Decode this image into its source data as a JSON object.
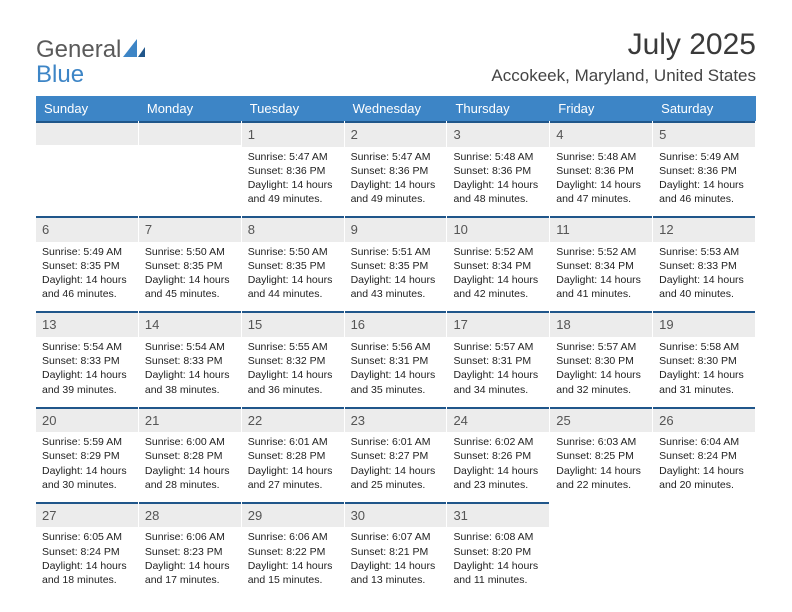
{
  "brand": {
    "part1": "General",
    "part2": "Blue"
  },
  "title": "July 2025",
  "location": "Accokeek, Maryland, United States",
  "colors": {
    "header_bg": "#3d85c6",
    "header_text": "#ffffff",
    "rule": "#20568a",
    "daynum_bg": "#ececec",
    "text": "#222222"
  },
  "weekdays": [
    "Sunday",
    "Monday",
    "Tuesday",
    "Wednesday",
    "Thursday",
    "Friday",
    "Saturday"
  ],
  "weeks": [
    [
      null,
      null,
      {
        "n": "1",
        "sunrise": "Sunrise: 5:47 AM",
        "sunset": "Sunset: 8:36 PM",
        "daylight": "Daylight: 14 hours and 49 minutes."
      },
      {
        "n": "2",
        "sunrise": "Sunrise: 5:47 AM",
        "sunset": "Sunset: 8:36 PM",
        "daylight": "Daylight: 14 hours and 49 minutes."
      },
      {
        "n": "3",
        "sunrise": "Sunrise: 5:48 AM",
        "sunset": "Sunset: 8:36 PM",
        "daylight": "Daylight: 14 hours and 48 minutes."
      },
      {
        "n": "4",
        "sunrise": "Sunrise: 5:48 AM",
        "sunset": "Sunset: 8:36 PM",
        "daylight": "Daylight: 14 hours and 47 minutes."
      },
      {
        "n": "5",
        "sunrise": "Sunrise: 5:49 AM",
        "sunset": "Sunset: 8:36 PM",
        "daylight": "Daylight: 14 hours and 46 minutes."
      }
    ],
    [
      {
        "n": "6",
        "sunrise": "Sunrise: 5:49 AM",
        "sunset": "Sunset: 8:35 PM",
        "daylight": "Daylight: 14 hours and 46 minutes."
      },
      {
        "n": "7",
        "sunrise": "Sunrise: 5:50 AM",
        "sunset": "Sunset: 8:35 PM",
        "daylight": "Daylight: 14 hours and 45 minutes."
      },
      {
        "n": "8",
        "sunrise": "Sunrise: 5:50 AM",
        "sunset": "Sunset: 8:35 PM",
        "daylight": "Daylight: 14 hours and 44 minutes."
      },
      {
        "n": "9",
        "sunrise": "Sunrise: 5:51 AM",
        "sunset": "Sunset: 8:35 PM",
        "daylight": "Daylight: 14 hours and 43 minutes."
      },
      {
        "n": "10",
        "sunrise": "Sunrise: 5:52 AM",
        "sunset": "Sunset: 8:34 PM",
        "daylight": "Daylight: 14 hours and 42 minutes."
      },
      {
        "n": "11",
        "sunrise": "Sunrise: 5:52 AM",
        "sunset": "Sunset: 8:34 PM",
        "daylight": "Daylight: 14 hours and 41 minutes."
      },
      {
        "n": "12",
        "sunrise": "Sunrise: 5:53 AM",
        "sunset": "Sunset: 8:33 PM",
        "daylight": "Daylight: 14 hours and 40 minutes."
      }
    ],
    [
      {
        "n": "13",
        "sunrise": "Sunrise: 5:54 AM",
        "sunset": "Sunset: 8:33 PM",
        "daylight": "Daylight: 14 hours and 39 minutes."
      },
      {
        "n": "14",
        "sunrise": "Sunrise: 5:54 AM",
        "sunset": "Sunset: 8:33 PM",
        "daylight": "Daylight: 14 hours and 38 minutes."
      },
      {
        "n": "15",
        "sunrise": "Sunrise: 5:55 AM",
        "sunset": "Sunset: 8:32 PM",
        "daylight": "Daylight: 14 hours and 36 minutes."
      },
      {
        "n": "16",
        "sunrise": "Sunrise: 5:56 AM",
        "sunset": "Sunset: 8:31 PM",
        "daylight": "Daylight: 14 hours and 35 minutes."
      },
      {
        "n": "17",
        "sunrise": "Sunrise: 5:57 AM",
        "sunset": "Sunset: 8:31 PM",
        "daylight": "Daylight: 14 hours and 34 minutes."
      },
      {
        "n": "18",
        "sunrise": "Sunrise: 5:57 AM",
        "sunset": "Sunset: 8:30 PM",
        "daylight": "Daylight: 14 hours and 32 minutes."
      },
      {
        "n": "19",
        "sunrise": "Sunrise: 5:58 AM",
        "sunset": "Sunset: 8:30 PM",
        "daylight": "Daylight: 14 hours and 31 minutes."
      }
    ],
    [
      {
        "n": "20",
        "sunrise": "Sunrise: 5:59 AM",
        "sunset": "Sunset: 8:29 PM",
        "daylight": "Daylight: 14 hours and 30 minutes."
      },
      {
        "n": "21",
        "sunrise": "Sunrise: 6:00 AM",
        "sunset": "Sunset: 8:28 PM",
        "daylight": "Daylight: 14 hours and 28 minutes."
      },
      {
        "n": "22",
        "sunrise": "Sunrise: 6:01 AM",
        "sunset": "Sunset: 8:28 PM",
        "daylight": "Daylight: 14 hours and 27 minutes."
      },
      {
        "n": "23",
        "sunrise": "Sunrise: 6:01 AM",
        "sunset": "Sunset: 8:27 PM",
        "daylight": "Daylight: 14 hours and 25 minutes."
      },
      {
        "n": "24",
        "sunrise": "Sunrise: 6:02 AM",
        "sunset": "Sunset: 8:26 PM",
        "daylight": "Daylight: 14 hours and 23 minutes."
      },
      {
        "n": "25",
        "sunrise": "Sunrise: 6:03 AM",
        "sunset": "Sunset: 8:25 PM",
        "daylight": "Daylight: 14 hours and 22 minutes."
      },
      {
        "n": "26",
        "sunrise": "Sunrise: 6:04 AM",
        "sunset": "Sunset: 8:24 PM",
        "daylight": "Daylight: 14 hours and 20 minutes."
      }
    ],
    [
      {
        "n": "27",
        "sunrise": "Sunrise: 6:05 AM",
        "sunset": "Sunset: 8:24 PM",
        "daylight": "Daylight: 14 hours and 18 minutes."
      },
      {
        "n": "28",
        "sunrise": "Sunrise: 6:06 AM",
        "sunset": "Sunset: 8:23 PM",
        "daylight": "Daylight: 14 hours and 17 minutes."
      },
      {
        "n": "29",
        "sunrise": "Sunrise: 6:06 AM",
        "sunset": "Sunset: 8:22 PM",
        "daylight": "Daylight: 14 hours and 15 minutes."
      },
      {
        "n": "30",
        "sunrise": "Sunrise: 6:07 AM",
        "sunset": "Sunset: 8:21 PM",
        "daylight": "Daylight: 14 hours and 13 minutes."
      },
      {
        "n": "31",
        "sunrise": "Sunrise: 6:08 AM",
        "sunset": "Sunset: 8:20 PM",
        "daylight": "Daylight: 14 hours and 11 minutes."
      },
      null,
      null
    ]
  ]
}
